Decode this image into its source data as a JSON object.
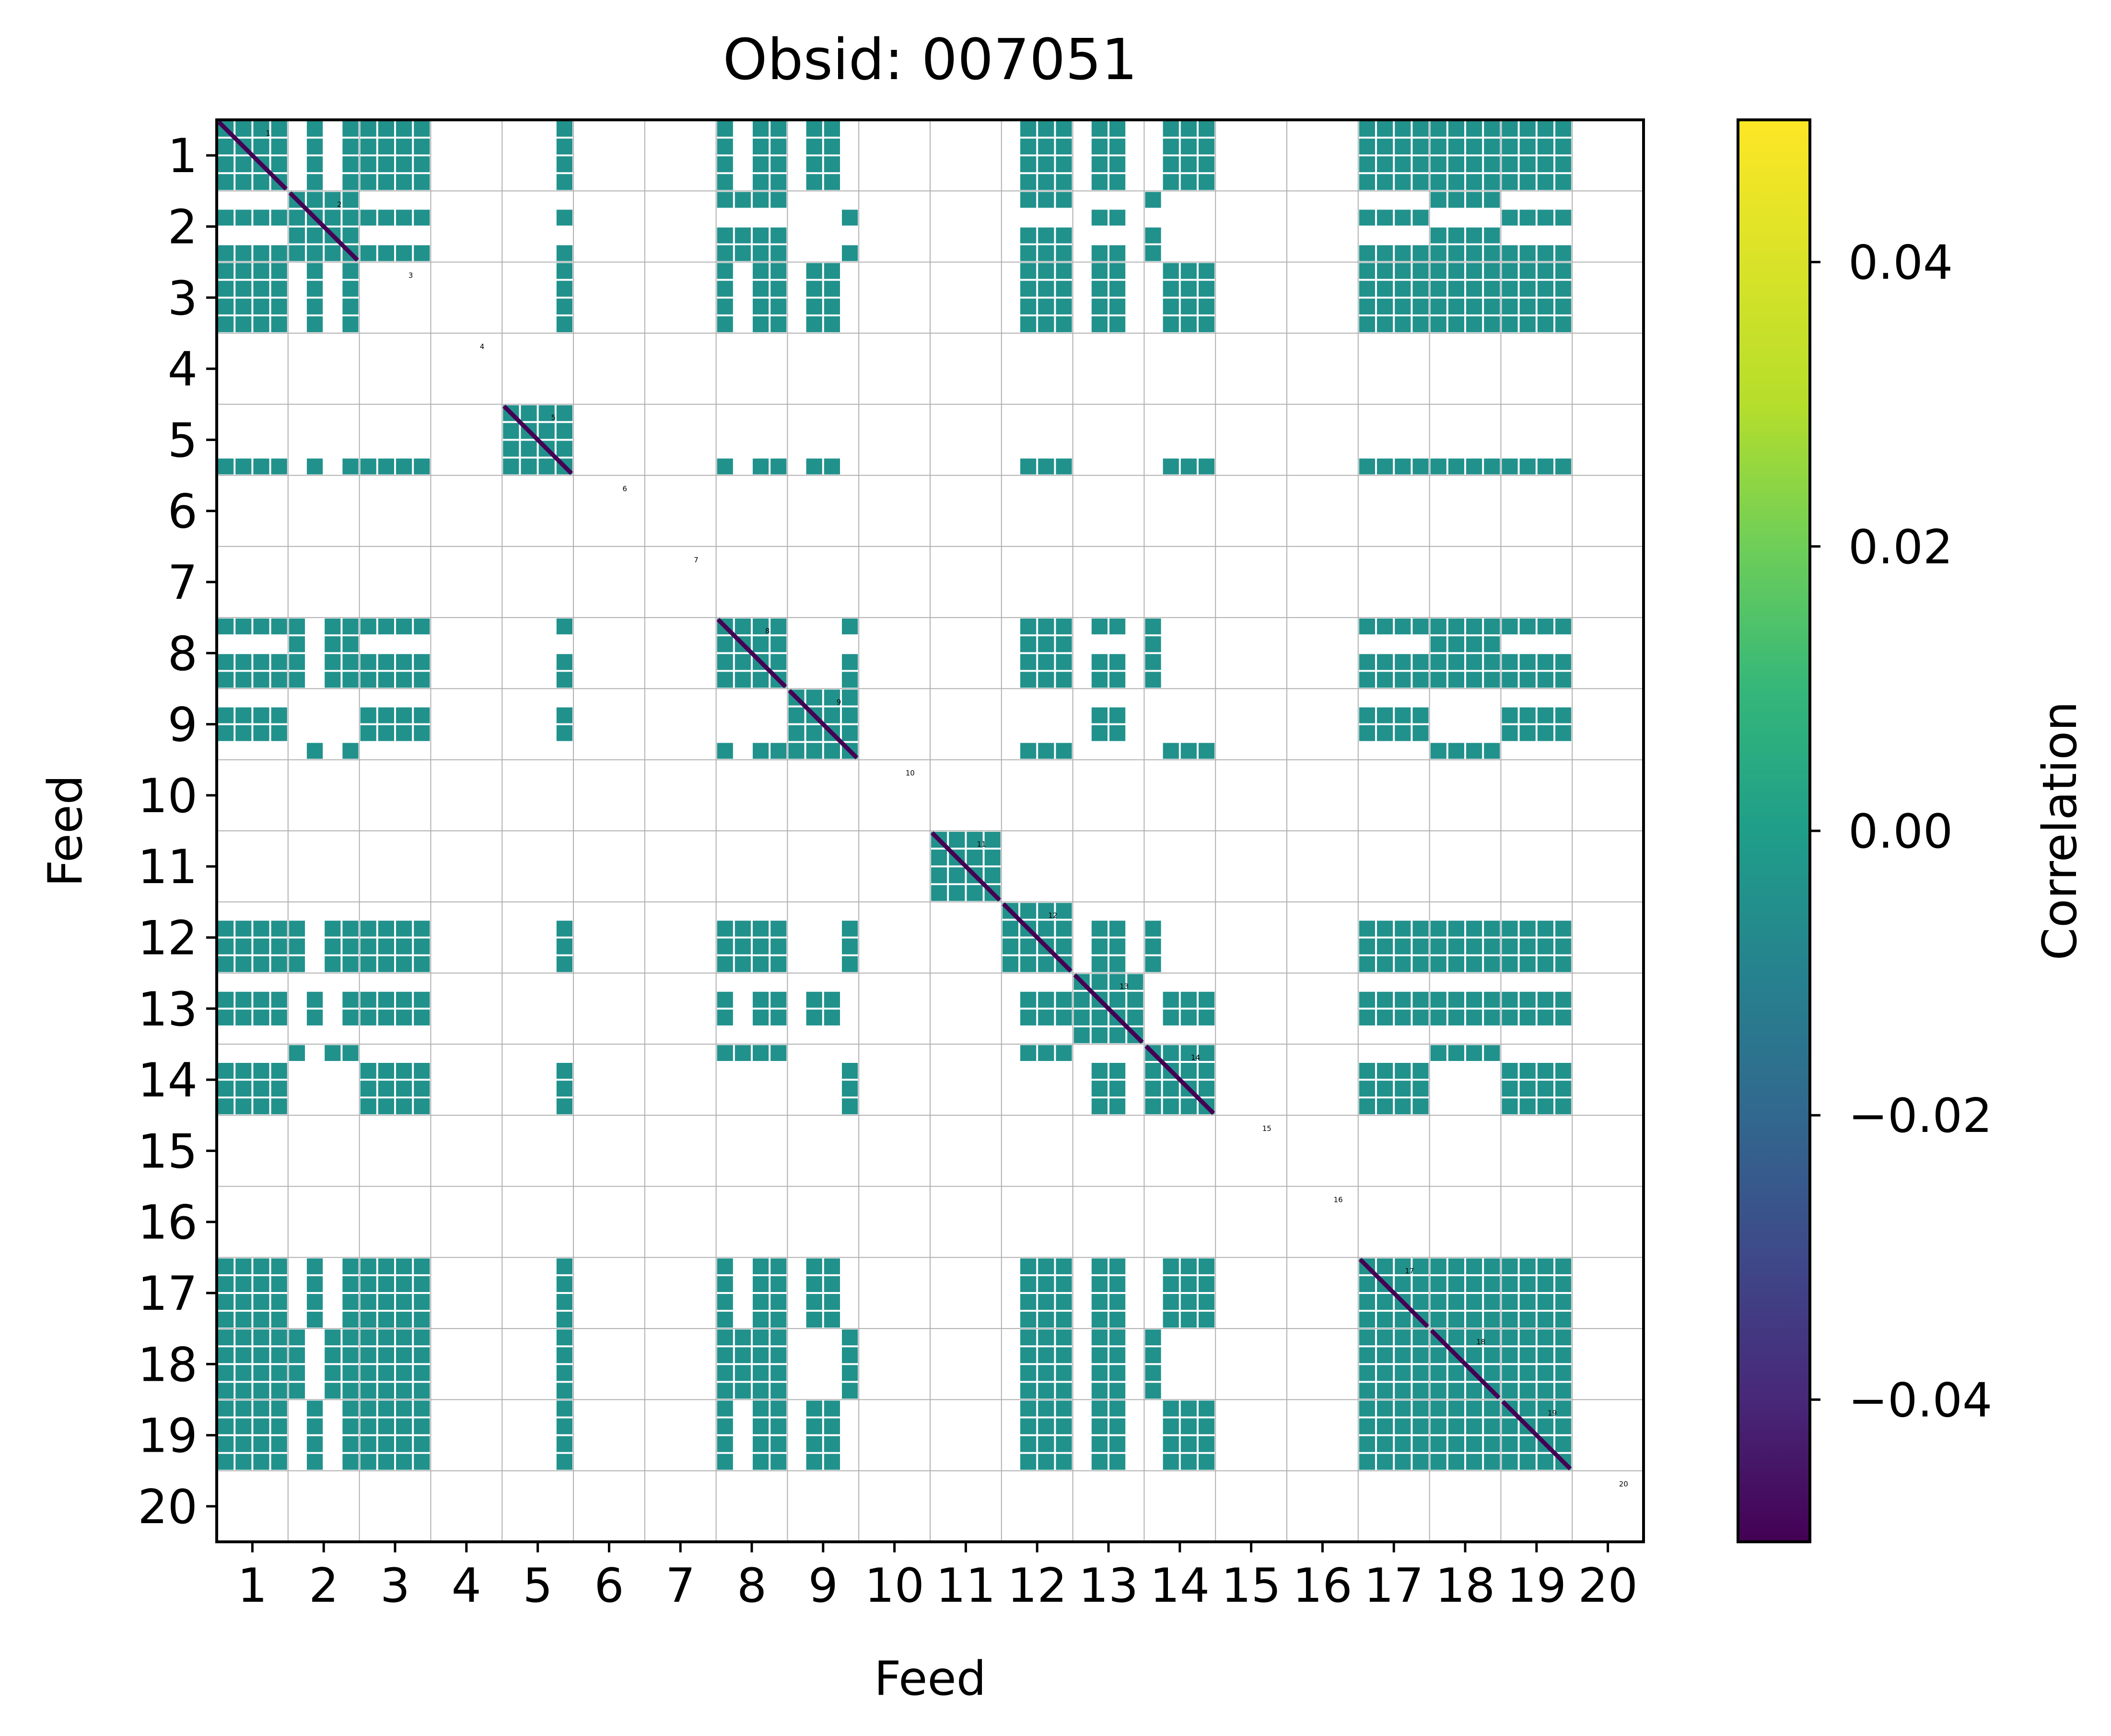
{
  "chart_data": {
    "type": "heatmap",
    "title": "Obsid: 007051",
    "xlabel": "Feed",
    "ylabel": "Feed",
    "x_ticks": [
      "1",
      "2",
      "3",
      "4",
      "5",
      "6",
      "7",
      "8",
      "9",
      "10",
      "11",
      "12",
      "13",
      "14",
      "15",
      "16",
      "17",
      "18",
      "19",
      "20"
    ],
    "y_ticks": [
      "1",
      "2",
      "3",
      "4",
      "5",
      "6",
      "7",
      "8",
      "9",
      "10",
      "11",
      "12",
      "13",
      "14",
      "15",
      "16",
      "17",
      "18",
      "19",
      "20"
    ],
    "feeds": 20,
    "cells_per_feed": 4,
    "colorbar": {
      "label": "Correlation",
      "vmin": -0.05,
      "vmax": 0.05,
      "ticks": [
        -0.04,
        -0.02,
        0.0,
        0.02,
        0.04
      ],
      "tick_labels": [
        "−0.04",
        "−0.02",
        "0.00",
        "0.02",
        "0.04"
      ],
      "colormap": "viridis"
    },
    "diag_labels": [
      "1",
      "2",
      "3",
      "4",
      "5",
      "6",
      "7",
      "8",
      "9",
      "10",
      "11",
      "12",
      "13",
      "14",
      "15",
      "16",
      "17",
      "18",
      "19",
      "20"
    ],
    "value_offdiag": 0.0,
    "value_diag": -0.05,
    "colors": {
      "zero": "#21918c",
      "diag": "#440154",
      "grid": "#b0b0b0",
      "background": "#ffffff"
    },
    "feed_rows": [
      {
        "feed": 1,
        "rows": [
          [
            1,
            1,
            1,
            1
          ],
          [
            1,
            1,
            1,
            1
          ]
        ]
      },
      {
        "feed": 2,
        "rows": [
          [
            1,
            0,
            1,
            1
          ],
          [
            0,
            1,
            0,
            1
          ]
        ]
      },
      {
        "feed": 5,
        "rows": [
          [
            0,
            0,
            0,
            1
          ]
        ]
      },
      {
        "feed": 8,
        "rows": [
          [
            1,
            1,
            1,
            1
          ],
          [
            1,
            0,
            1,
            1
          ]
        ]
      },
      {
        "feed": 9,
        "rows": [
          [
            0,
            1,
            1,
            0
          ],
          [
            0,
            0,
            0,
            1
          ]
        ]
      },
      {
        "feed": 11,
        "rows": [
          [
            0,
            1,
            1,
            0
          ],
          [
            0,
            0,
            0,
            1
          ]
        ]
      },
      {
        "feed": 12,
        "rows": [
          [
            0,
            1,
            1,
            1
          ]
        ]
      },
      {
        "feed": 13,
        "rows": [
          [
            0,
            1,
            1,
            0
          ]
        ]
      },
      {
        "feed": 14,
        "rows": [
          [
            1,
            0,
            0,
            0
          ],
          [
            0,
            1,
            1,
            1
          ]
        ]
      },
      {
        "feed": 17,
        "rows": [
          [
            1,
            1,
            1,
            1
          ]
        ]
      },
      {
        "feed": 18,
        "rows": [
          [
            1,
            1,
            1,
            1
          ]
        ]
      },
      {
        "feed": 19,
        "rows": [
          [
            1,
            1,
            1,
            1
          ],
          [
            1,
            1,
            1,
            1
          ]
        ]
      }
    ],
    "active_pairs": [
      [
        1,
        2
      ],
      [
        1,
        3
      ],
      [
        1,
        5
      ],
      [
        1,
        8
      ],
      [
        1,
        9
      ],
      [
        1,
        12
      ],
      [
        1,
        13
      ],
      [
        1,
        14
      ],
      [
        1,
        17
      ],
      [
        1,
        18
      ],
      [
        1,
        19
      ],
      [
        2,
        3
      ],
      [
        2,
        5
      ],
      [
        2,
        8
      ],
      [
        2,
        9
      ],
      [
        2,
        12
      ],
      [
        2,
        13
      ],
      [
        2,
        14
      ],
      [
        2,
        17
      ],
      [
        2,
        18
      ],
      [
        2,
        19
      ],
      [
        3,
        5
      ],
      [
        3,
        8
      ],
      [
        3,
        9
      ],
      [
        3,
        12
      ],
      [
        3,
        13
      ],
      [
        3,
        14
      ],
      [
        3,
        17
      ],
      [
        3,
        18
      ],
      [
        3,
        19
      ],
      [
        5,
        8
      ],
      [
        5,
        9
      ],
      [
        5,
        12
      ],
      [
        5,
        14
      ],
      [
        5,
        17
      ],
      [
        5,
        18
      ],
      [
        5,
        19
      ],
      [
        8,
        9
      ],
      [
        8,
        12
      ],
      [
        8,
        13
      ],
      [
        8,
        14
      ],
      [
        8,
        17
      ],
      [
        8,
        18
      ],
      [
        8,
        19
      ],
      [
        9,
        12
      ],
      [
        9,
        13
      ],
      [
        9,
        14
      ],
      [
        9,
        17
      ],
      [
        9,
        18
      ],
      [
        9,
        19
      ],
      [
        12,
        13
      ],
      [
        12,
        14
      ],
      [
        12,
        17
      ],
      [
        12,
        18
      ],
      [
        12,
        19
      ],
      [
        13,
        14
      ],
      [
        13,
        17
      ],
      [
        13,
        18
      ],
      [
        13,
        19
      ],
      [
        14,
        17
      ],
      [
        14,
        18
      ],
      [
        14,
        19
      ],
      [
        17,
        18
      ],
      [
        17,
        19
      ],
      [
        18,
        19
      ]
    ]
  }
}
